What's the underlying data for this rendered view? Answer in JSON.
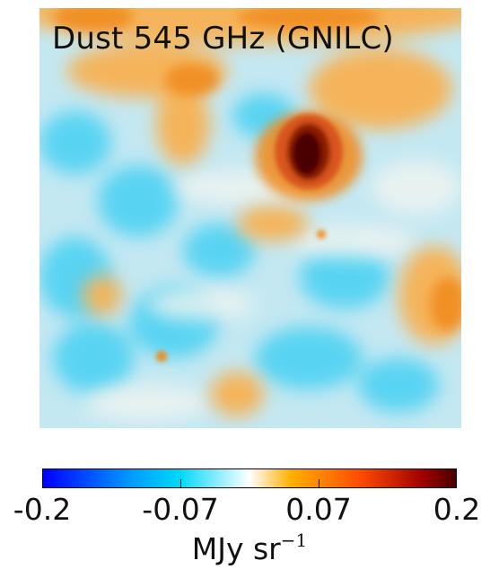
{
  "map": {
    "title": "Dust 545 GHz (GNILC)"
  },
  "colorbar": {
    "tick_labels": [
      "-0.2",
      "-0.07",
      "0.07",
      "0.2"
    ],
    "tick_values": [
      -0.2,
      -0.07,
      0.07,
      0.2
    ],
    "range": [
      -0.2,
      0.2
    ],
    "unit_base": "MJy sr",
    "unit_exponent": "−1",
    "colors": [
      "#0000ff",
      "#00a0ff",
      "#00d8f8",
      "#ffffff",
      "#ffb000",
      "#ff4a00",
      "#a00000",
      "#480000"
    ]
  }
}
